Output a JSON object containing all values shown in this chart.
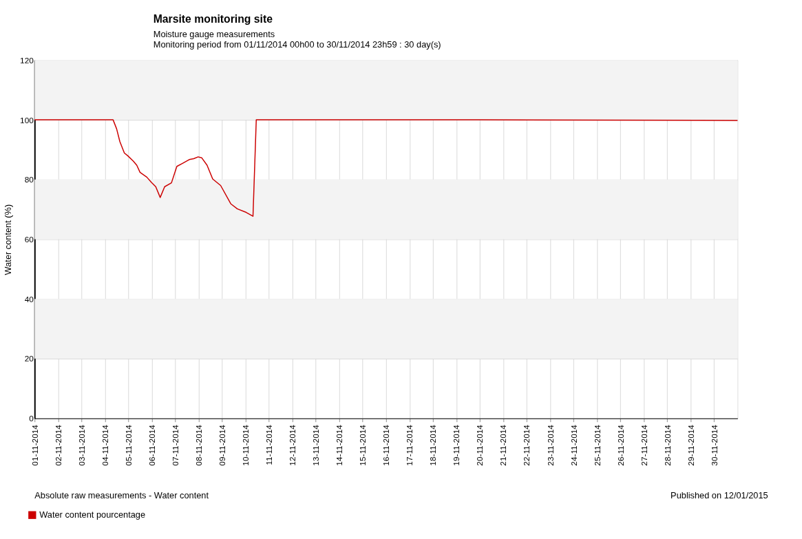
{
  "chart_data": {
    "type": "line",
    "title": "Marsite monitoring site",
    "subtitle": "Moisture gauge measurements\nMonitoring period from 01/11/2014 00h00 to 30/11/2014 23h59 : 30 day(s)",
    "ylabel": "Water content (%)",
    "annotations": [
      "Absolute raw measurements - Water content",
      "Published on 12/01/2015"
    ],
    "x": [
      "2014-11-01T00:00",
      "2014-11-04T08:24",
      "2014-11-04T12:00",
      "2014-11-04T15:20",
      "2014-11-04T19:55",
      "2014-11-04T23:17",
      "2014-11-05T05:02",
      "2014-11-05T08:38",
      "2014-11-05T12:00",
      "2014-11-05T18:58",
      "2014-11-05T23:31",
      "2014-11-06T04:05",
      "2014-11-06T08:38",
      "2014-11-06T13:12",
      "2014-11-06T20:10",
      "2014-11-07T01:41",
      "2014-11-07T07:26",
      "2014-11-07T14:24",
      "2014-11-07T18:58",
      "2014-11-07T23:31",
      "2014-11-08T03:07",
      "2014-11-08T08:38",
      "2014-11-08T14:24",
      "2014-11-08T22:34",
      "2014-11-09T08:53",
      "2014-11-09T15:36",
      "2014-11-10T00:43",
      "2014-11-10T07:41",
      "2014-11-10T11:02",
      "2014-11-20T00:00",
      "2014-11-30T23:59"
    ],
    "series": [
      {
        "name": "Water content pourcentage",
        "color": "#cc0000",
        "values": [
          100,
          100,
          97,
          92.7,
          88.9,
          88,
          86.2,
          84.8,
          82.4,
          80.8,
          79.1,
          77.6,
          74,
          77.6,
          78.9,
          84.4,
          85.4,
          86.7,
          87,
          87.6,
          87.3,
          84.8,
          80.2,
          78,
          71.9,
          70.2,
          69,
          67.7,
          100,
          100,
          99.8
        ]
      }
    ],
    "xlim": [
      "2014-11-01T00:00",
      "2014-11-30T23:59"
    ],
    "xticks": [
      {
        "value": "2014-11-01",
        "label": "01-11-2014"
      },
      {
        "value": "2014-11-02",
        "label": "02-11-2014"
      },
      {
        "value": "2014-11-03",
        "label": "03-11-2014"
      },
      {
        "value": "2014-11-04",
        "label": "04-11-2014"
      },
      {
        "value": "2014-11-05",
        "label": "05-11-2014"
      },
      {
        "value": "2014-11-06",
        "label": "06-11-2014"
      },
      {
        "value": "2014-11-07",
        "label": "07-11-2014"
      },
      {
        "value": "2014-11-08",
        "label": "08-11-2014"
      },
      {
        "value": "2014-11-09",
        "label": "09-11-2014"
      },
      {
        "value": "2014-11-10",
        "label": "10-11-2014"
      },
      {
        "value": "2014-11-11",
        "label": "11-11-2014"
      },
      {
        "value": "2014-11-12",
        "label": "12-11-2014"
      },
      {
        "value": "2014-11-13",
        "label": "13-11-2014"
      },
      {
        "value": "2014-11-14",
        "label": "14-11-2014"
      },
      {
        "value": "2014-11-15",
        "label": "15-11-2014"
      },
      {
        "value": "2014-11-16",
        "label": "16-11-2014"
      },
      {
        "value": "2014-11-17",
        "label": "17-11-2014"
      },
      {
        "value": "2014-11-18",
        "label": "18-11-2014"
      },
      {
        "value": "2014-11-19",
        "label": "19-11-2014"
      },
      {
        "value": "2014-11-20",
        "label": "20-11-2014"
      },
      {
        "value": "2014-11-21",
        "label": "21-11-2014"
      },
      {
        "value": "2014-11-22",
        "label": "22-11-2014"
      },
      {
        "value": "2014-11-23",
        "label": "23-11-2014"
      },
      {
        "value": "2014-11-24",
        "label": "24-11-2014"
      },
      {
        "value": "2014-11-25",
        "label": "25-11-2014"
      },
      {
        "value": "2014-11-26",
        "label": "26-11-2014"
      },
      {
        "value": "2014-11-27",
        "label": "27-11-2014"
      },
      {
        "value": "2014-11-28",
        "label": "28-11-2014"
      },
      {
        "value": "2014-11-29",
        "label": "29-11-2014"
      },
      {
        "value": "2014-11-30",
        "label": "30-11-2014"
      }
    ],
    "ylim": [
      0,
      120
    ],
    "yticks": [
      0,
      20,
      40,
      60,
      80,
      100,
      120
    ],
    "bands": [
      {
        "axis": "y",
        "from": 20,
        "to": 40,
        "color": "#f3f3f3"
      },
      {
        "axis": "y",
        "from": 60,
        "to": 80,
        "color": "#f3f3f3"
      },
      {
        "axis": "y",
        "from": 100,
        "to": 120,
        "color": "#f3f3f3"
      }
    ],
    "grid": true,
    "legend": "bottom left",
    "marker": "none",
    "line_style": "solid"
  }
}
